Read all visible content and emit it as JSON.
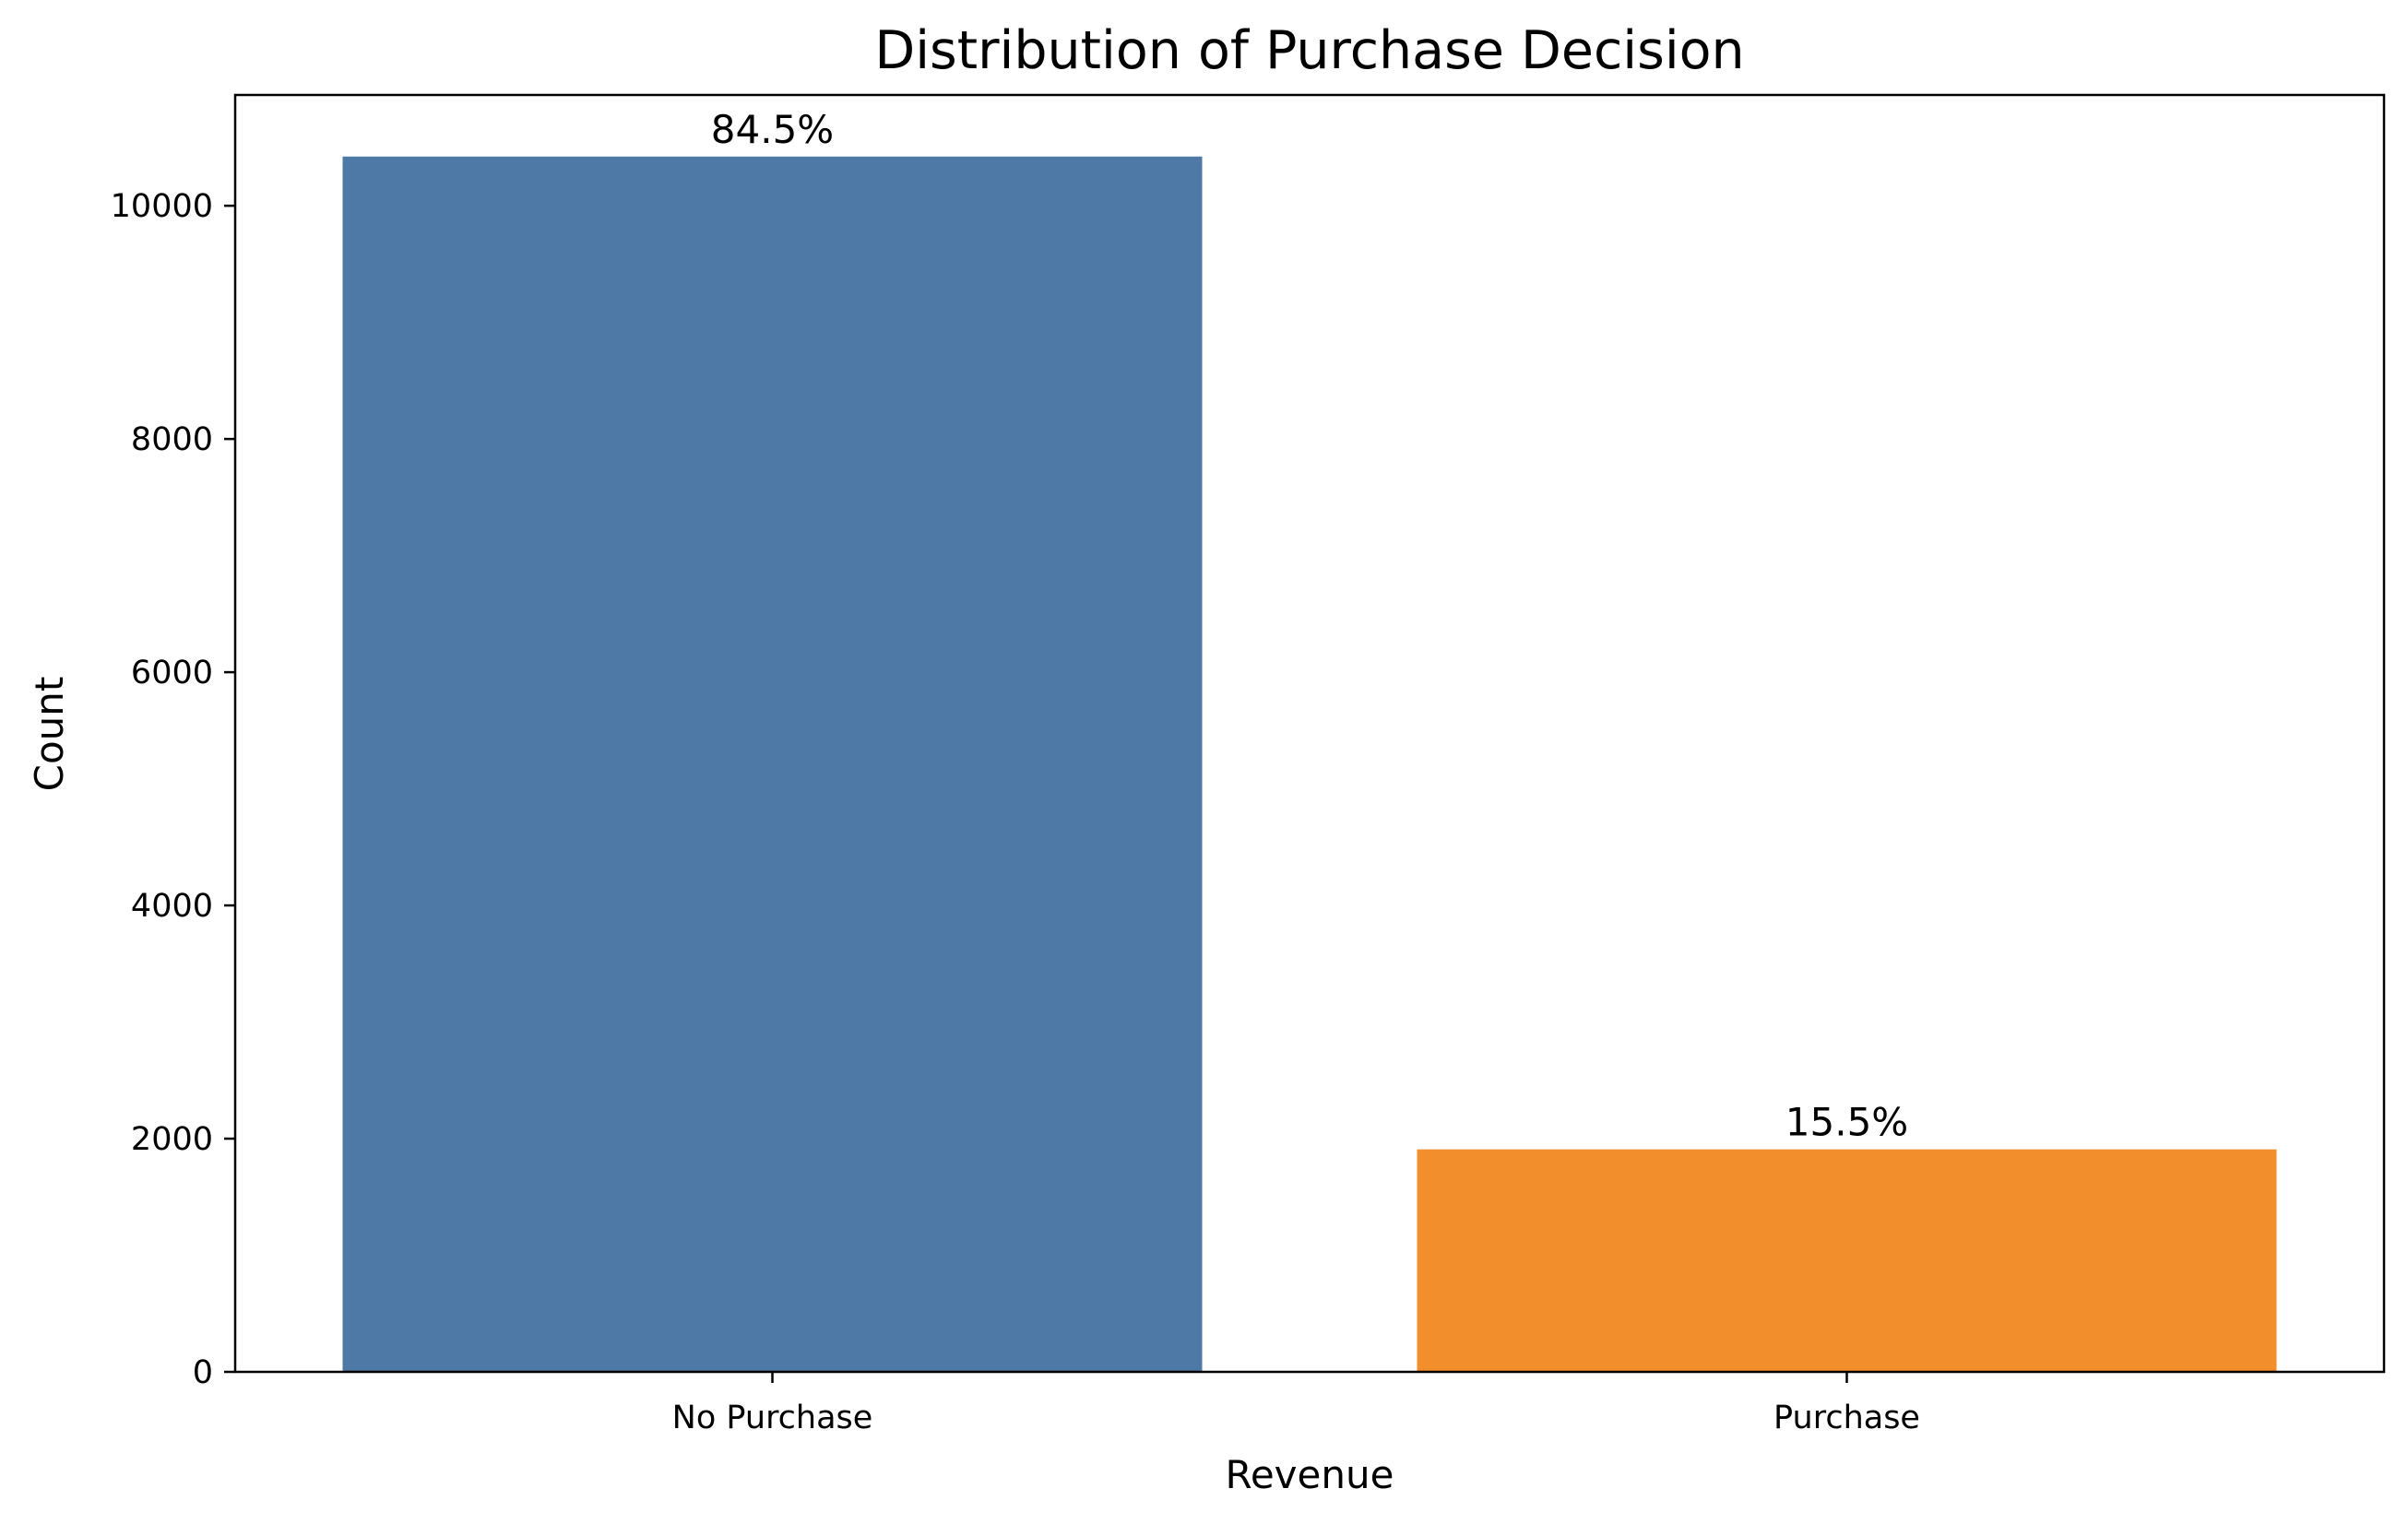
{
  "chart_data": {
    "type": "bar",
    "title": "Distribution of Purchase Decision",
    "xlabel": "Revenue",
    "ylabel": "Count",
    "categories": [
      "No Purchase",
      "Purchase"
    ],
    "values": [
      10422,
      1908
    ],
    "data_labels": [
      "84.5%",
      "15.5%"
    ],
    "colors": [
      "#4e79a7",
      "#f28e2b"
    ],
    "ylim": [
      0,
      10950
    ],
    "yticks": [
      0,
      2000,
      4000,
      6000,
      8000,
      10000
    ],
    "ytick_labels": [
      "0",
      "2000",
      "4000",
      "6000",
      "8000",
      "10000"
    ],
    "grid": false,
    "legend": false
  }
}
